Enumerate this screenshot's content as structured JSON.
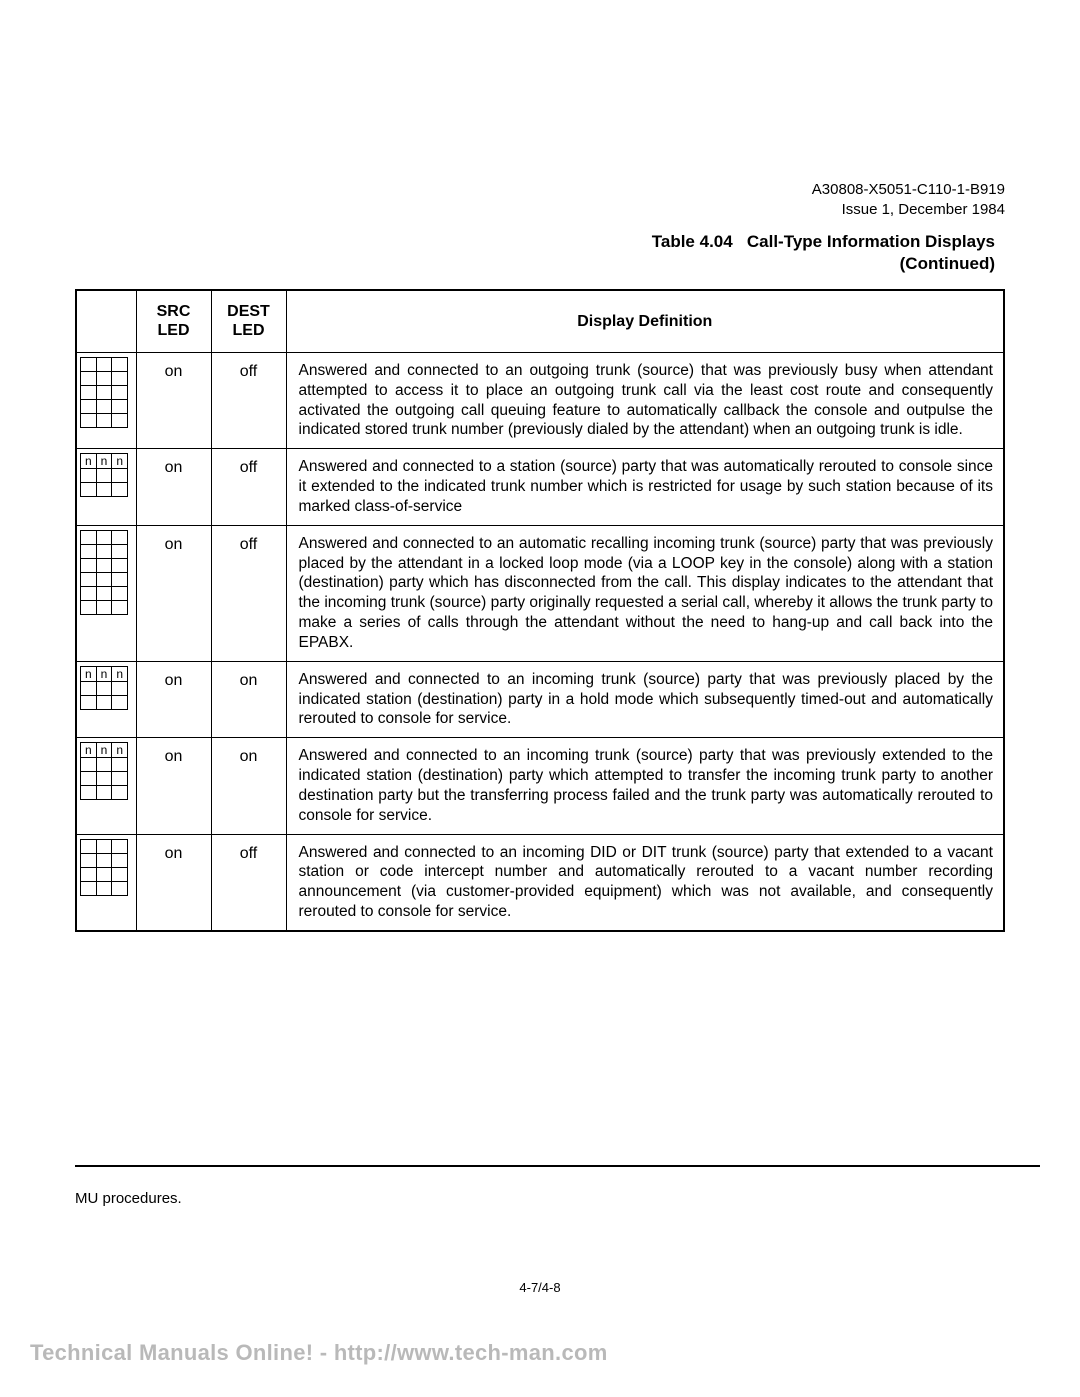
{
  "doc": {
    "ref": "A30808-X5051-C110-1-B919",
    "issue": "Issue 1, December 1984"
  },
  "table_title": {
    "line1": "Table 4.04   Call-Type Information Displays",
    "line2": "(Continued)"
  },
  "headers": {
    "src": "SRC LED",
    "dest": "DEST LED",
    "def": "Display Definition"
  },
  "rows": [
    {
      "diag_label": false,
      "diag_rows": 5,
      "src": "on",
      "dest": "off",
      "def": "Answered and connected to an outgoing trunk (source) that was previously busy when attendant attempted to access it to place an outgoing trunk call via the least cost route and consequently activated the outgoing call queuing feature to automatically callback the console and outpulse the indicated stored trunk number (previously dialed by the attendant) when an outgoing trunk is idle."
    },
    {
      "diag_label": true,
      "diag_rows": 3,
      "src": "on",
      "dest": "off",
      "def": "Answered and connected to a station (source) party that was automatically rerouted to console since it extended to the indicated trunk number which is restricted for usage by such station because of its marked class-of-service"
    },
    {
      "diag_label": false,
      "diag_rows": 6,
      "src": "on",
      "dest": "off",
      "def": "Answered and connected to an automatic recalling incoming trunk (source) party that was previously placed by the attendant in a locked loop mode (via a LOOP key in the console) along with a station (destination) party which has disconnected from the call. This display indicates to the attendant that the incoming trunk (source) party originally requested a serial call, whereby it allows the trunk party to make a series of calls through the attendant without the need to hang-up and call back into the EPABX."
    },
    {
      "diag_label": true,
      "diag_rows": 3,
      "src": "on",
      "dest": "on",
      "def": "Answered and connected to an incoming trunk (source) party that was previously placed by the indicated station (destination) party in a hold mode which subsequently timed-out and automatically rerouted to console for service."
    },
    {
      "diag_label": true,
      "diag_rows": 4,
      "src": "on",
      "dest": "on",
      "def": "Answered and connected to an incoming trunk (source) party that was previously extended to the indicated station (destination) party which attempted to transfer the incoming trunk party to another destination party but the transferring process failed and the trunk party was automatically rerouted to console for service."
    },
    {
      "diag_label": false,
      "diag_rows": 4,
      "src": "on",
      "dest": "off",
      "def": "Answered and connected to an incoming DID or DIT trunk (source) party that extended to a vacant station or code intercept number and automatically rerouted to a vacant number recording announcement (via customer-provided equipment) which was not available, and consequently rerouted to console for service."
    }
  ],
  "diag_letters": {
    "a": "n",
    "b": "n",
    "c": "n"
  },
  "footer": "MU procedures.",
  "page_num": "4-7/4-8",
  "watermark": "Technical Manuals Online! - http://www.tech-man.com"
}
